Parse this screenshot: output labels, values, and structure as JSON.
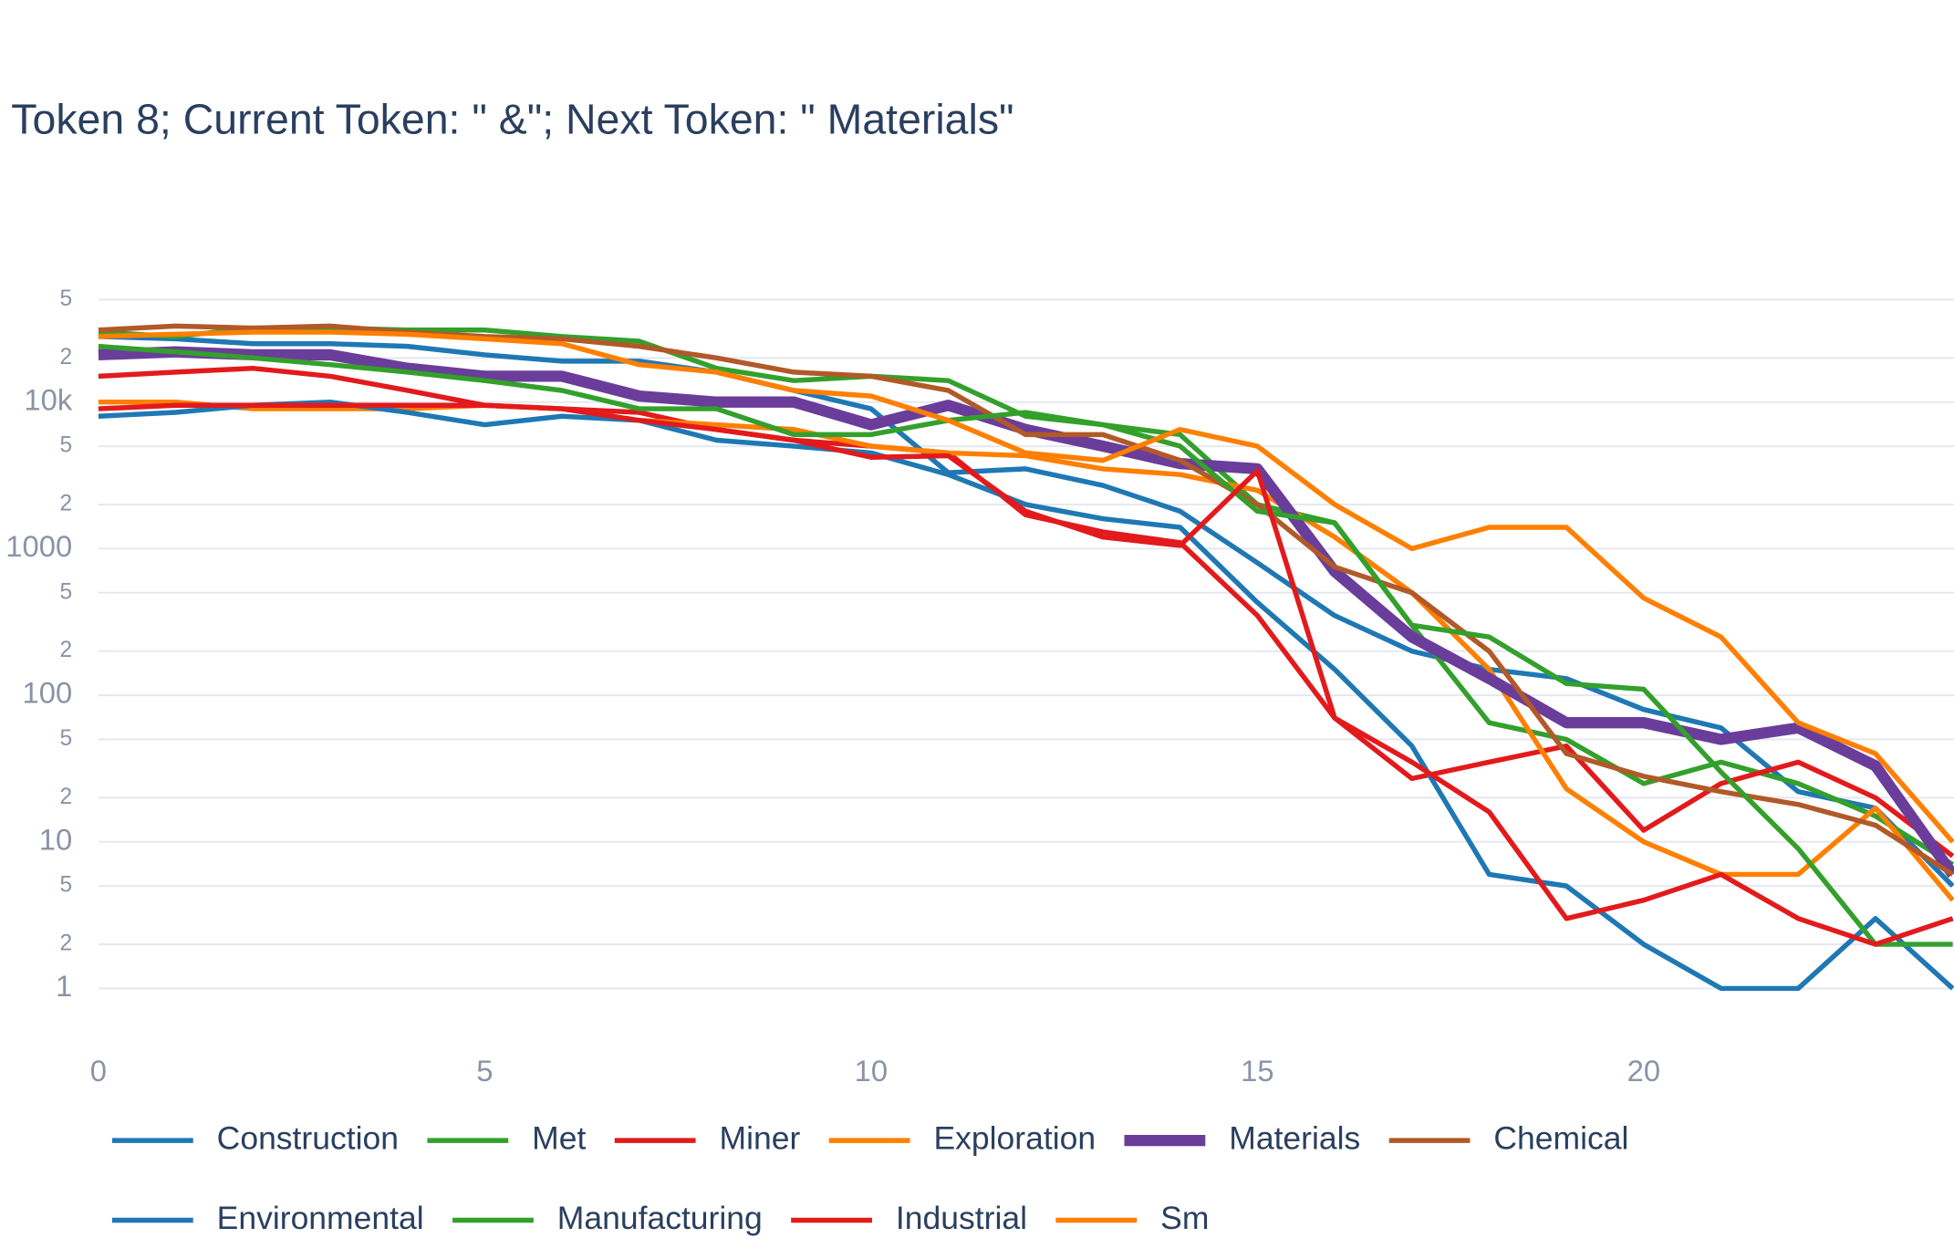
{
  "chart_data": {
    "type": "line",
    "title": "Token 8; Current Token: \" &\"; Next Token: \" Materials\"",
    "x": [
      0,
      1,
      2,
      3,
      4,
      5,
      6,
      7,
      8,
      9,
      10,
      11,
      12,
      13,
      14,
      15,
      16,
      17,
      18,
      19,
      20,
      21,
      22,
      23,
      24
    ],
    "xlim": [
      0,
      24
    ],
    "xticks": [
      0,
      5,
      10,
      15,
      20
    ],
    "log_y": true,
    "grid": true,
    "ylim": [
      0.5,
      60000
    ],
    "yticks": [
      1,
      2,
      5,
      10,
      {
        "value": 20,
        "label": "2"
      },
      {
        "value": 50,
        "label": "5"
      },
      100,
      {
        "value": 200,
        "label": "2"
      },
      {
        "value": 500,
        "label": "5"
      },
      1000,
      {
        "value": 2000,
        "label": "2"
      },
      {
        "value": 5000,
        "label": "5"
      },
      {
        "value": 10000,
        "label": "10k"
      },
      {
        "value": 20000,
        "label": "2"
      },
      {
        "value": 50000,
        "label": "5"
      }
    ],
    "series": [
      {
        "name": "Construction",
        "color": "#1f78b4",
        "width": 4,
        "values": [
          28000,
          27000,
          25000,
          25000,
          24000,
          21000,
          19000,
          19000,
          16000,
          12000,
          9000,
          3300,
          3500,
          2700,
          1800,
          800,
          350,
          200,
          150,
          130,
          80,
          60,
          22,
          17,
          5
        ]
      },
      {
        "name": "Met",
        "color": "#33a02c",
        "width": 4,
        "values": [
          30000,
          28000,
          32000,
          32000,
          31000,
          31000,
          28000,
          26000,
          17000,
          14000,
          15000,
          14000,
          8000,
          7000,
          6000,
          2000,
          1500,
          300,
          65,
          50,
          25,
          35,
          25,
          15,
          7
        ]
      },
      {
        "name": "Miner",
        "color": "#e31a1c",
        "width": 4,
        "values": [
          15000,
          16000,
          17000,
          15000,
          12000,
          9500,
          9000,
          8500,
          6500,
          5500,
          5000,
          4500,
          1700,
          1300,
          1100,
          350,
          70,
          27,
          35,
          45,
          12,
          25,
          35,
          20,
          8
        ]
      },
      {
        "name": "Exploration",
        "color": "#ff7f00",
        "width": 4,
        "values": [
          10000,
          10000,
          9000,
          9000,
          9000,
          9500,
          9000,
          7500,
          7000,
          6500,
          5000,
          4500,
          4300,
          3500,
          3200,
          2500,
          1200,
          500,
          150,
          23,
          10,
          6,
          6,
          17,
          4
        ]
      },
      {
        "name": "Materials",
        "color": "#6a3d9a",
        "width": 9,
        "values": [
          21000,
          22000,
          21000,
          21000,
          17000,
          15000,
          15000,
          11000,
          10000,
          10000,
          7000,
          9500,
          6500,
          5000,
          3800,
          3500,
          700,
          250,
          130,
          65,
          65,
          50,
          60,
          33,
          6
        ]
      },
      {
        "name": "Chemical",
        "color": "#b15928",
        "width": 4,
        "values": [
          31000,
          33000,
          32000,
          33000,
          30000,
          28000,
          27000,
          24000,
          20000,
          16000,
          15000,
          12000,
          6000,
          6000,
          4000,
          2000,
          750,
          500,
          200,
          40,
          28,
          22,
          18,
          13,
          6
        ]
      },
      {
        "name": "Environmental",
        "color": "#1f78b4",
        "width": 4,
        "values": [
          8000,
          8500,
          9500,
          10000,
          8500,
          7000,
          8000,
          7500,
          5500,
          5000,
          4500,
          3200,
          2000,
          1600,
          1400,
          430,
          150,
          45,
          6,
          5,
          2,
          1,
          1,
          3,
          1
        ]
      },
      {
        "name": "Manufacturing",
        "color": "#33a02c",
        "width": 4,
        "values": [
          24000,
          22000,
          20000,
          18000,
          16000,
          14000,
          12000,
          9000,
          9000,
          6000,
          6000,
          7500,
          8500,
          7000,
          5000,
          1800,
          1500,
          300,
          250,
          120,
          110,
          30,
          9,
          2,
          2
        ]
      },
      {
        "name": "Industrial",
        "color": "#e31a1c",
        "width": 4,
        "values": [
          9000,
          9500,
          9500,
          9500,
          9500,
          9500,
          9000,
          7500,
          6500,
          5500,
          4200,
          4300,
          1800,
          1200,
          1050,
          3400,
          70,
          35,
          16,
          3,
          4,
          6,
          3,
          2,
          3
        ]
      },
      {
        "name": "Sm",
        "color": "#ff7f00",
        "width": 4,
        "values": [
          28000,
          29000,
          30000,
          30000,
          29000,
          27000,
          25000,
          18000,
          16000,
          12000,
          11000,
          7500,
          4500,
          4000,
          6500,
          5000,
          2000,
          1000,
          1400,
          1400,
          460,
          250,
          65,
          40,
          10
        ]
      }
    ]
  }
}
